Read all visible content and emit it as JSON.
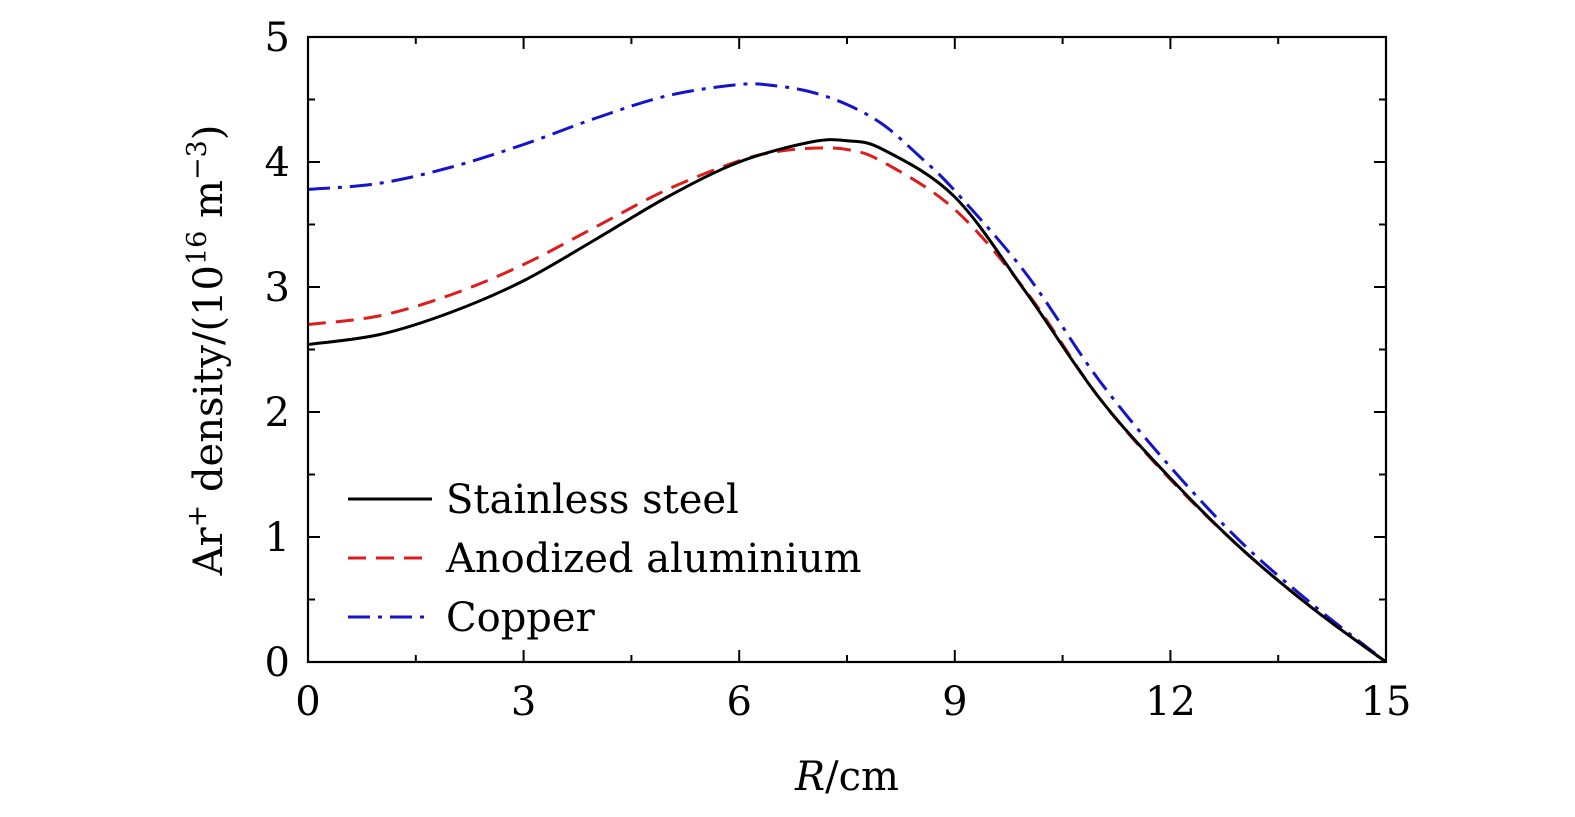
{
  "chart_data": {
    "type": "line",
    "title": "",
    "xlabel": "R/cm",
    "xlabel_parts": {
      "var": "R",
      "unit": "/cm"
    },
    "ylabel": "Ar+ density/(10^16 m^-3)",
    "ylabel_parts": {
      "pre": "Ar",
      "sup1": "+",
      "mid": " density/(10",
      "sup2": "16",
      "mid2": " m",
      "sup3": "−3",
      "post": ")"
    },
    "xlim": [
      0,
      15
    ],
    "ylim": [
      0,
      5
    ],
    "xticks": [
      0,
      3,
      6,
      9,
      12,
      15
    ],
    "yticks": [
      0,
      1,
      2,
      3,
      4,
      5
    ],
    "grid": false,
    "legend_position": "bottom-left",
    "series": [
      {
        "name": "Stainless steel",
        "color": "#000000",
        "dash": "solid",
        "x": [
          0,
          1,
          2,
          3,
          4,
          5,
          6,
          7,
          7.5,
          8,
          9,
          10,
          11,
          12,
          13,
          14,
          15
        ],
        "y": [
          2.54,
          2.62,
          2.8,
          3.05,
          3.38,
          3.72,
          4.0,
          4.16,
          4.17,
          4.1,
          3.72,
          2.95,
          2.12,
          1.47,
          0.9,
          0.42,
          0.0
        ]
      },
      {
        "name": "Anodized aluminium",
        "color": "#dd1c1c",
        "dash": "dashed",
        "x": [
          0,
          1,
          2,
          3,
          4,
          5,
          6,
          6.5,
          7,
          7.5,
          8,
          9,
          10,
          11,
          12,
          13,
          14,
          15
        ],
        "y": [
          2.7,
          2.77,
          2.94,
          3.18,
          3.48,
          3.78,
          4.01,
          4.08,
          4.11,
          4.1,
          4.0,
          3.62,
          2.96,
          2.12,
          1.46,
          0.9,
          0.42,
          0.0
        ]
      },
      {
        "name": "Copper",
        "color": "#1414c8",
        "dash": "dashdot",
        "x": [
          0,
          1,
          2,
          3,
          4,
          5,
          6,
          6.5,
          7,
          7.5,
          8,
          8.5,
          9,
          10,
          11,
          12,
          13,
          14,
          15
        ],
        "y": [
          3.78,
          3.83,
          3.96,
          4.14,
          4.35,
          4.53,
          4.62,
          4.61,
          4.56,
          4.46,
          4.3,
          4.05,
          3.77,
          3.1,
          2.26,
          1.56,
          0.95,
          0.45,
          0.0
        ]
      }
    ]
  }
}
